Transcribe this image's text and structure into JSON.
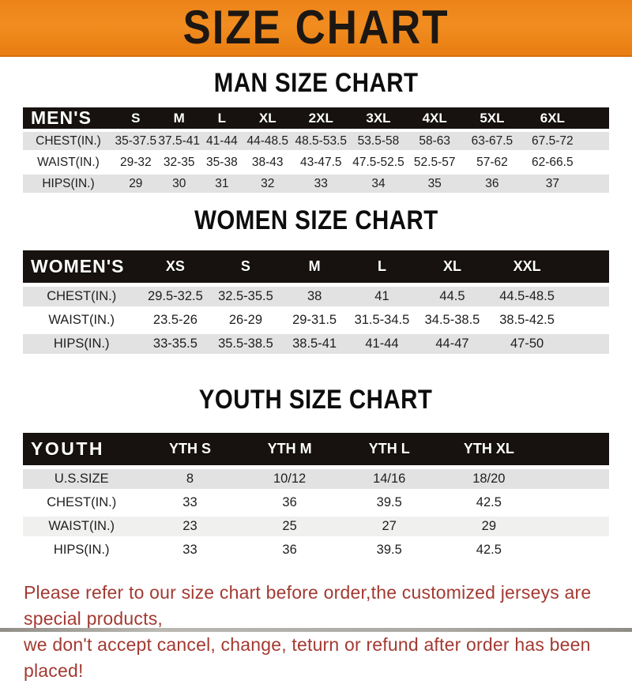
{
  "banner": {
    "title": "SIZE CHART",
    "bg_color": "#ee861c",
    "text_color": "#1c1713"
  },
  "colors": {
    "table_header_bg": "#17120f",
    "row_shade": "#e2e2e2",
    "footer_text": "#a33a32"
  },
  "chart_data": [
    {
      "type": "table",
      "name": "mens",
      "title": "MAN SIZE CHART",
      "header_label": "MEN'S",
      "columns": [
        "S",
        "M",
        "L",
        "XL",
        "2XL",
        "3XL",
        "4XL",
        "5XL",
        "6XL"
      ],
      "rows": [
        {
          "label": "CHEST(IN.)",
          "values": [
            "35-37.5",
            "37.5-41",
            "41-44",
            "44-48.5",
            "48.5-53.5",
            "53.5-58",
            "58-63",
            "63-67.5",
            "67.5-72"
          ]
        },
        {
          "label": "WAIST(IN.)",
          "values": [
            "29-32",
            "32-35",
            "35-38",
            "38-43",
            "43-47.5",
            "47.5-52.5",
            "52.5-57",
            "57-62",
            "62-66.5"
          ]
        },
        {
          "label": "HIPS(IN.)",
          "values": [
            "29",
            "30",
            "31",
            "32",
            "33",
            "34",
            "35",
            "36",
            "37"
          ]
        }
      ]
    },
    {
      "type": "table",
      "name": "womens",
      "title": "WOMEN SIZE CHART",
      "header_label": "WOMEN'S",
      "columns": [
        "XS",
        "S",
        "M",
        "L",
        "XL",
        "XXL"
      ],
      "rows": [
        {
          "label": "CHEST(IN.)",
          "values": [
            "29.5-32.5",
            "32.5-35.5",
            "38",
            "41",
            "44.5",
            "44.5-48.5"
          ]
        },
        {
          "label": "WAIST(IN.)",
          "values": [
            "23.5-26",
            "26-29",
            "29-31.5",
            "31.5-34.5",
            "34.5-38.5",
            "38.5-42.5"
          ]
        },
        {
          "label": "HIPS(IN.)",
          "values": [
            "33-35.5",
            "35.5-38.5",
            "38.5-41",
            "41-44",
            "44-47",
            "47-50"
          ]
        }
      ]
    },
    {
      "type": "table",
      "name": "youth",
      "title": "YOUTH SIZE CHART",
      "header_label": "YOUTH",
      "columns": [
        "YTH S",
        "YTH M",
        "YTH L",
        "YTH XL"
      ],
      "rows": [
        {
          "label": "U.S.SIZE",
          "values": [
            "8",
            "10/12",
            "14/16",
            "18/20"
          ]
        },
        {
          "label": "CHEST(IN.)",
          "values": [
            "33",
            "36",
            "39.5",
            "42.5"
          ]
        },
        {
          "label": "WAIST(IN.)",
          "values": [
            "23",
            "25",
            "27",
            "29"
          ]
        },
        {
          "label": "HIPS(IN.)",
          "values": [
            "33",
            "36",
            "39.5",
            "42.5"
          ]
        }
      ]
    }
  ],
  "footer": {
    "line1": "Please refer to our size chart before order,the customized jerseys are special products,",
    "line2": "we don't accept cancel, change, teturn or refund after order has been placed!"
  }
}
